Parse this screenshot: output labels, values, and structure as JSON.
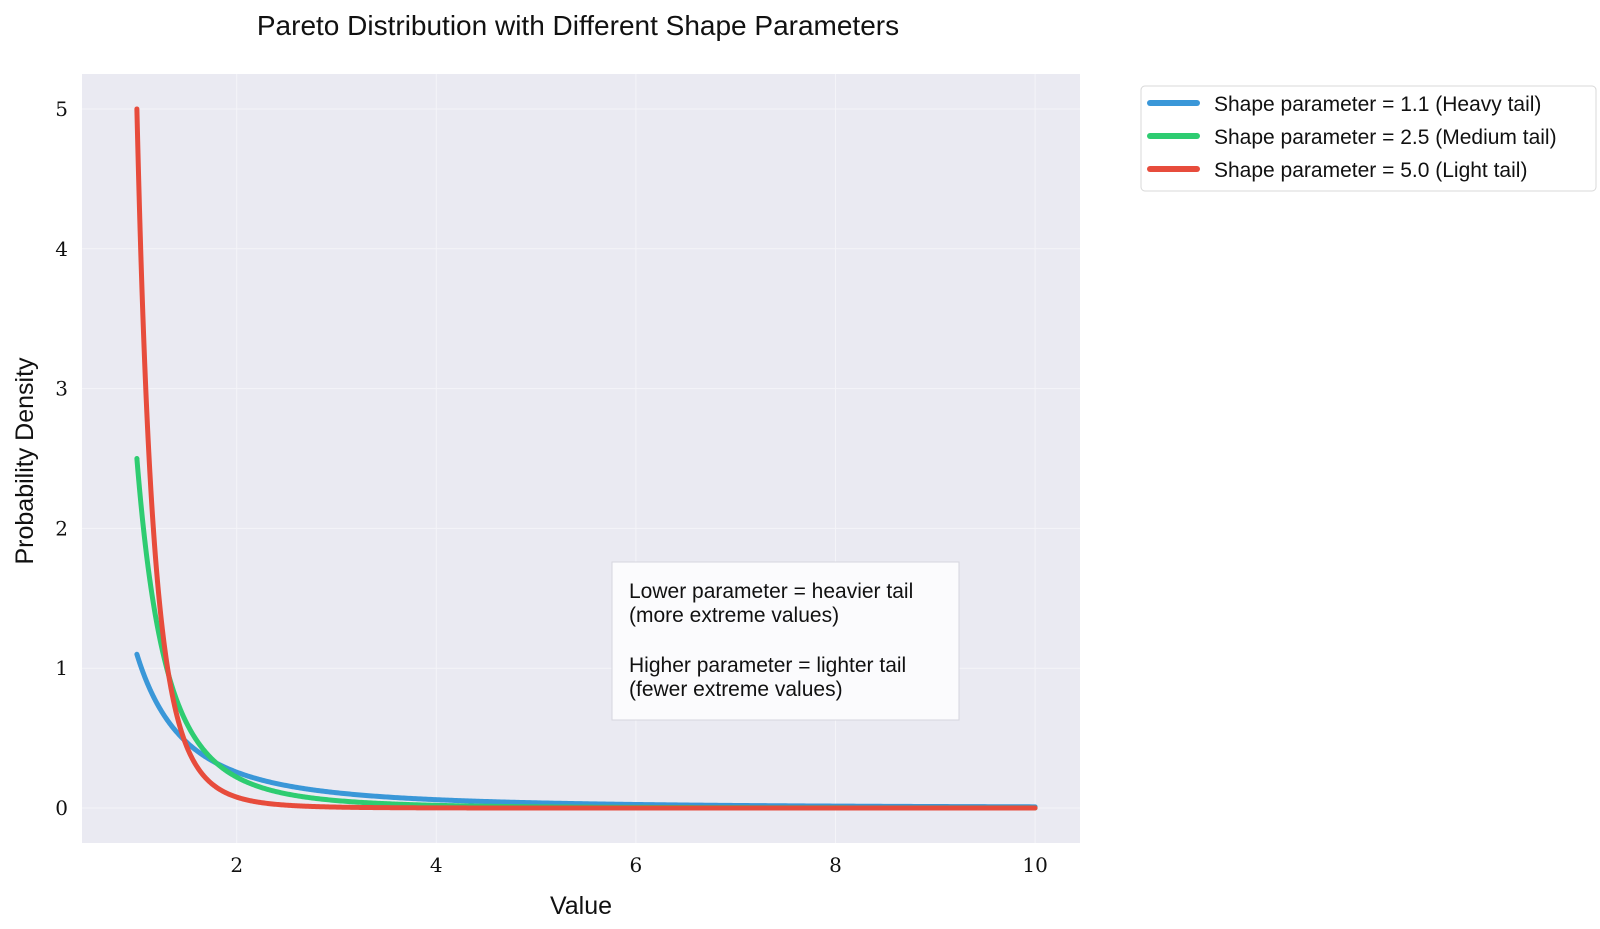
{
  "chart_data": {
    "type": "line",
    "title": "Pareto Distribution with Different Shape Parameters",
    "xlabel": "Value",
    "ylabel": "Probability Density",
    "xlim": [
      0.45,
      10.45
    ],
    "ylim": [
      -0.25,
      5.25
    ],
    "xticks": [
      2,
      4,
      6,
      8,
      10
    ],
    "yticks": [
      0,
      1,
      2,
      3,
      4,
      5
    ],
    "grid": true,
    "legend_position": "outside-top-right",
    "distribution": "pareto",
    "x_min": 1,
    "x_max": 10,
    "series": [
      {
        "name": "Shape parameter = 1.1 (Heavy tail)",
        "shape": 1.1,
        "color": "#3a97d8",
        "x": [
          1,
          1.25,
          1.5,
          2,
          3,
          4,
          6,
          8,
          10
        ],
        "values": [
          1.1,
          0.86,
          0.7,
          0.51,
          0.33,
          0.24,
          0.15,
          0.11,
          0.087
        ]
      },
      {
        "name": "Shape parameter = 2.5 (Medium tail)",
        "shape": 2.5,
        "color": "#2ecc71",
        "x": [
          1,
          1.25,
          1.5,
          2,
          3,
          4,
          6,
          8,
          10
        ],
        "values": [
          2.5,
          1.14,
          0.6,
          0.22,
          0.053,
          0.02,
          0.0054,
          0.0022,
          0.0011
        ]
      },
      {
        "name": "Shape parameter = 5.0 (Light tail)",
        "shape": 5.0,
        "color": "#e74c3c",
        "x": [
          1,
          1.25,
          1.5,
          2,
          3,
          4,
          6,
          8,
          10
        ],
        "values": [
          5.0,
          1.31,
          0.44,
          0.078,
          0.0069,
          0.0012,
          0.0001,
          2e-05,
          1e-05
        ]
      }
    ],
    "annotation": {
      "lines": [
        "Lower parameter = heavier tail",
        "(more extreme values)",
        "",
        "Higher parameter = lighter tail",
        "(fewer extreme values)"
      ]
    },
    "colors": {
      "plot_background": "#eaeaf2",
      "grid": "#f4f4f8",
      "text": "#111111"
    }
  }
}
